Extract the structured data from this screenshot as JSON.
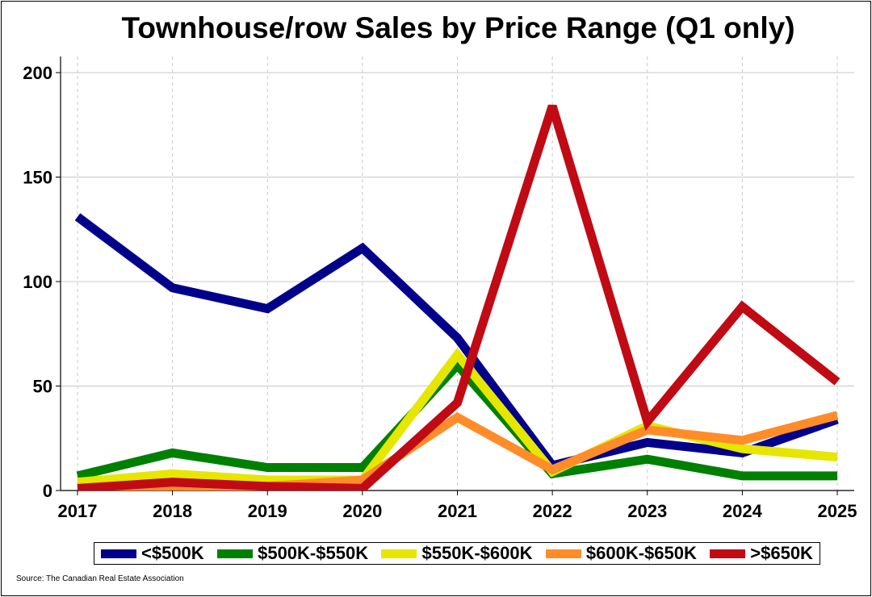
{
  "chart_data": {
    "type": "line",
    "title": "Townhouse/row Sales by Price Range (Q1 only)",
    "xlabel": "",
    "ylabel": "",
    "x": [
      "2017",
      "2018",
      "2019",
      "2020",
      "2021",
      "2022",
      "2023",
      "2024",
      "2025"
    ],
    "ylim": [
      0,
      200
    ],
    "yticks": [
      "0",
      "50",
      "100",
      "150",
      "200"
    ],
    "grid": true,
    "legend_position": "bottom",
    "series": [
      {
        "name": "<$500K",
        "color": "#00008B",
        "values": [
          131,
          97,
          87,
          116,
          73,
          12,
          23,
          18,
          34
        ]
      },
      {
        "name": "$500K-$550K",
        "color": "#008000",
        "values": [
          7,
          18,
          11,
          11,
          60,
          8,
          15,
          7,
          7
        ]
      },
      {
        "name": "$550K-$600K",
        "color": "#E6E600",
        "values": [
          4,
          8,
          5,
          5,
          65,
          9,
          31,
          20,
          16
        ]
      },
      {
        "name": "$600K-$650K",
        "color": "#FF8C28",
        "values": [
          0,
          1,
          2,
          5,
          35,
          10,
          29,
          24,
          36
        ]
      },
      {
        "name": ">$650K",
        "color": "#C00A14",
        "values": [
          1,
          4,
          2,
          1,
          42,
          184,
          33,
          88,
          52
        ]
      }
    ],
    "source": "Source: The Canadian Real Estate Association"
  }
}
